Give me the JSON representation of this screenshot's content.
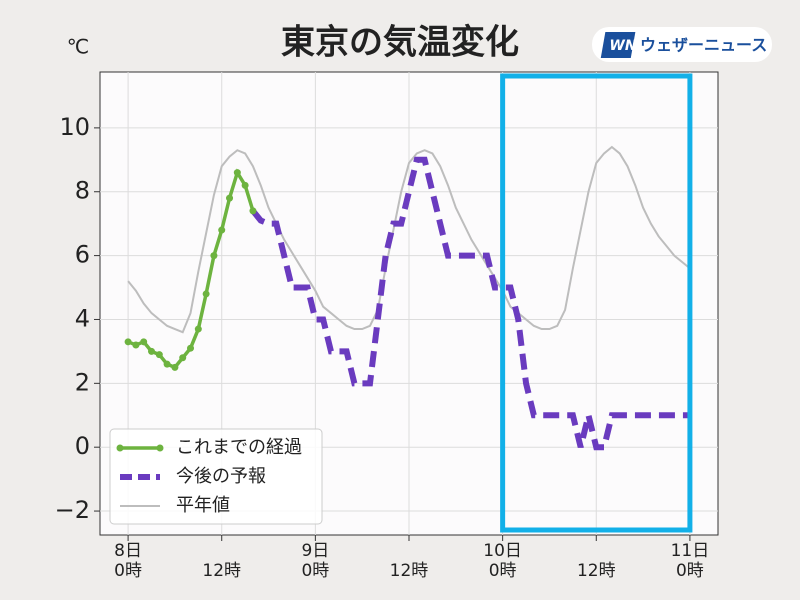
{
  "chart_data": {
    "type": "line",
    "title": "東京の気温変化",
    "y_unit": "℃",
    "brand": {
      "icon": "WN",
      "name": "ウェザーニュース"
    },
    "xlim": [
      -3.6,
      75.6
    ],
    "ylim": [
      -2.75,
      11.75
    ],
    "xticks": [
      {
        "value": 0,
        "label": "8日\n0時"
      },
      {
        "value": 12,
        "label": "12時"
      },
      {
        "value": 24,
        "label": "9日\n0時"
      },
      {
        "value": 36,
        "label": "12時"
      },
      {
        "value": 48,
        "label": "10日\n0時"
      },
      {
        "value": 60,
        "label": "12時"
      },
      {
        "value": 72,
        "label": "11日\n0時"
      }
    ],
    "yticks": [
      {
        "value": -2,
        "label": "−2"
      },
      0,
      2,
      4,
      6,
      8,
      10
    ],
    "grid": true,
    "legend": "lower left",
    "highlight_x": [
      48,
      72
    ],
    "highlight_color": "#12b0e8",
    "series": [
      {
        "name": "これまでの経過",
        "color": "#6db33f",
        "style": "solid-dots",
        "x": [
          0,
          1,
          2,
          3,
          4,
          5,
          6,
          7,
          8,
          9,
          10,
          11,
          12,
          13,
          14,
          15,
          16
        ],
        "values": [
          3.3,
          3.2,
          3.3,
          3.0,
          2.9,
          2.6,
          2.5,
          2.8,
          3.1,
          3.7,
          4.8,
          6.0,
          6.8,
          7.8,
          8.6,
          8.2,
          7.4
        ]
      },
      {
        "name": "今後の予報",
        "color": "#6a3bbf",
        "style": "dashed",
        "x": [
          16,
          17,
          18,
          19,
          20,
          21,
          22,
          23,
          24,
          25,
          26,
          27,
          28,
          29,
          30,
          31,
          32,
          33,
          34,
          35,
          36,
          37,
          38,
          39,
          40,
          41,
          42,
          43,
          44,
          45,
          46,
          47,
          48,
          49,
          50,
          51,
          52,
          53,
          54,
          55,
          56,
          57,
          58,
          59,
          60,
          61,
          62,
          63,
          64,
          65,
          66,
          67,
          68,
          69,
          70,
          71,
          72
        ],
        "values": [
          7.4,
          7.1,
          7,
          7,
          6,
          5,
          5,
          5,
          4,
          4,
          3,
          3,
          3,
          2,
          2,
          2,
          4,
          6,
          7,
          7,
          8,
          9,
          9,
          8,
          7,
          6,
          6,
          6,
          6,
          6,
          6,
          5,
          5,
          5,
          4,
          2,
          1,
          1,
          1,
          1,
          1,
          1,
          0,
          1,
          0,
          0,
          1,
          1,
          1,
          1,
          1,
          1,
          1,
          1,
          1,
          1,
          1
        ]
      },
      {
        "name": "平年値",
        "color": "#bdbdbd",
        "style": "thin",
        "x": [
          0,
          1,
          2,
          3,
          4,
          5,
          6,
          7,
          8,
          9,
          10,
          11,
          12,
          13,
          14,
          15,
          16,
          17,
          18,
          19,
          20,
          21,
          22,
          23,
          24,
          25,
          26,
          27,
          28,
          29,
          30,
          31,
          32,
          33,
          34,
          35,
          36,
          37,
          38,
          39,
          40,
          41,
          42,
          43,
          44,
          45,
          46,
          47,
          48,
          49,
          50,
          51,
          52,
          53,
          54,
          55,
          56,
          57,
          58,
          59,
          60,
          61,
          62,
          63,
          64,
          65,
          66,
          67,
          68,
          69,
          70,
          71,
          72
        ],
        "values": [
          5.2,
          4.9,
          4.5,
          4.2,
          4.0,
          3.8,
          3.7,
          3.6,
          4.2,
          5.5,
          6.7,
          7.9,
          8.8,
          9.1,
          9.3,
          9.2,
          8.8,
          8.2,
          7.5,
          7.0,
          6.5,
          6.1,
          5.7,
          5.3,
          4.9,
          4.4,
          4.2,
          4.0,
          3.8,
          3.7,
          3.7,
          3.8,
          4.3,
          5.6,
          6.8,
          8.0,
          8.9,
          9.2,
          9.3,
          9.2,
          8.8,
          8.2,
          7.5,
          7.0,
          6.5,
          6.1,
          5.7,
          5.3,
          4.9,
          4.4,
          4.2,
          4.0,
          3.8,
          3.7,
          3.7,
          3.8,
          4.3,
          5.6,
          6.8,
          8.0,
          8.9,
          9.2,
          9.4,
          9.2,
          8.8,
          8.2,
          7.5,
          7.0,
          6.6,
          6.3,
          6.0,
          5.8,
          5.6
        ]
      }
    ]
  }
}
